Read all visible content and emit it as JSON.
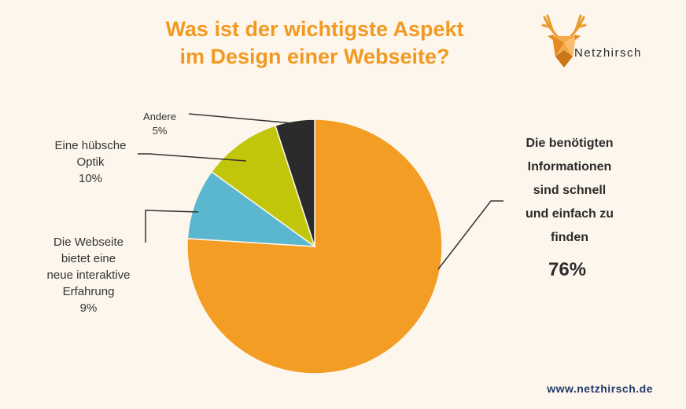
{
  "header": {
    "title_line1": "Was ist der wichtigste Aspekt",
    "title_line2": "im Design einer Webseite?"
  },
  "brand": {
    "logo_text": "Netzhirsch",
    "logo_icon": "deer-head-icon",
    "url": "www.netzhirsch.de"
  },
  "colors": {
    "accent": "#f19a23",
    "turquoise": "#5bb6d0",
    "olive": "#c2c60b",
    "dark": "#2b2b2b"
  },
  "chart_data": {
    "type": "pie",
    "title": "Was ist der wichtigste Aspekt im Design einer Webseite?",
    "start_angle_deg": 0,
    "direction": "clockwise",
    "slices": [
      {
        "label_lines": [
          "Die benötigten",
          "Informationen",
          "sind schnell",
          "und einfach zu",
          "finden"
        ],
        "value": 76,
        "pct_text": "76%",
        "color": "#f49d24"
      },
      {
        "label_lines": [
          "Die Webseite",
          "bietet eine",
          "neue interaktive",
          "Erfahrung"
        ],
        "value": 9,
        "pct_text": "9%",
        "color": "#5bb6d0"
      },
      {
        "label_lines": [
          "Eine hübsche",
          "Optik"
        ],
        "value": 10,
        "pct_text": "10%",
        "color": "#c2c60b"
      },
      {
        "label_lines": [
          "Andere"
        ],
        "value": 5,
        "pct_text": "5%",
        "color": "#2b2b2b"
      }
    ]
  }
}
